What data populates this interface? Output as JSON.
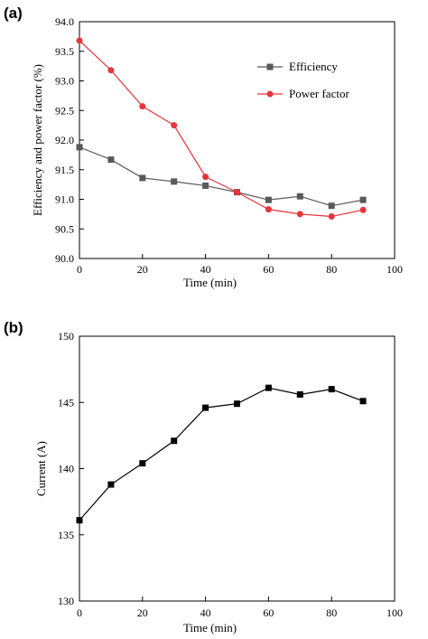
{
  "chart_data": [
    {
      "panel_label": "(a)",
      "type": "line",
      "x": [
        0,
        10,
        20,
        30,
        40,
        50,
        60,
        70,
        80,
        90
      ],
      "xlim": [
        0,
        100
      ],
      "xticks": [
        0,
        20,
        40,
        60,
        80,
        100
      ],
      "ylim": [
        90.0,
        94.0
      ],
      "yticks": [
        "90.0",
        "90.5",
        "91.0",
        "91.5",
        "92.0",
        "92.5",
        "93.0",
        "93.5",
        "94.0"
      ],
      "xlabel": "Time (min)",
      "ylabel": "Efficiency and power factor (%)",
      "grid": false,
      "legend_position": "top-right",
      "series": [
        {
          "name": "Efficiency",
          "color": "#595959",
          "marker": "square",
          "values": [
            91.88,
            91.67,
            91.36,
            91.3,
            91.23,
            91.12,
            90.99,
            91.05,
            90.89,
            90.99
          ]
        },
        {
          "name": "Power factor",
          "color": "#e8343c",
          "marker": "circle",
          "values": [
            93.68,
            93.18,
            92.57,
            92.25,
            91.38,
            91.12,
            90.83,
            90.75,
            90.71,
            90.82
          ]
        }
      ]
    },
    {
      "panel_label": "(b)",
      "type": "line",
      "x": [
        0,
        10,
        20,
        30,
        40,
        50,
        60,
        70,
        80,
        90
      ],
      "xlim": [
        0,
        100
      ],
      "xticks": [
        0,
        20,
        40,
        60,
        80,
        100
      ],
      "ylim": [
        130,
        150
      ],
      "yticks": [
        130,
        135,
        140,
        145,
        150
      ],
      "xlabel": "Time (min)",
      "ylabel": "Current (A)",
      "grid": false,
      "series": [
        {
          "color": "#000000",
          "marker": "square",
          "values": [
            136.1,
            138.8,
            140.4,
            142.1,
            144.6,
            144.9,
            146.1,
            145.6,
            146.0,
            145.1
          ]
        }
      ]
    }
  ]
}
